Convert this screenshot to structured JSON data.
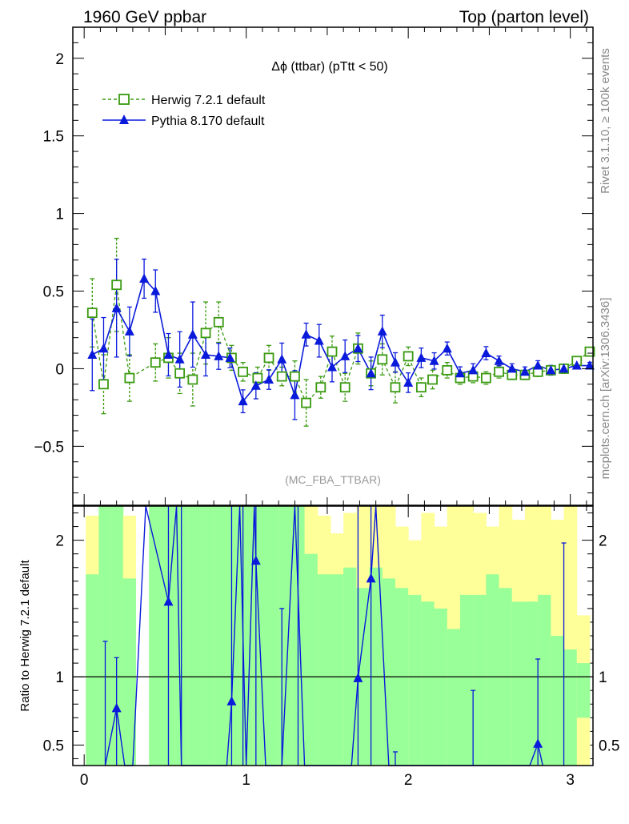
{
  "header": {
    "left_title": "1960 GeV ppbar",
    "right_title": "Top (parton level)"
  },
  "side_labels": {
    "rivet": "Rivet 3.1.10, ≥ 100k events",
    "mcplots": "mcplots.cern.ch [arXiv:1306.3436]"
  },
  "analysis_tag": "(MC_FBA_TTBAR)",
  "chart_data": [
    {
      "type": "line",
      "panel": "main",
      "title": "Δϕ (ttbar) (pTtt < 50)",
      "xlabel": "",
      "ylabel": "",
      "xlim": [
        -0.07,
        3.14
      ],
      "ylim": [
        -0.88,
        2.2
      ],
      "yticks": [
        -0.5,
        0,
        0.5,
        1,
        1.5,
        2
      ],
      "ytick_labels": [
        "−0.5",
        "0",
        "0.5",
        "1",
        "1.5",
        "2"
      ],
      "legend_position": "top-left",
      "series": [
        {
          "name": "Herwig 7.2.1 default",
          "color": "#3a9a10",
          "marker": "open-square",
          "line": "dashed",
          "x": [
            0.05,
            0.12,
            0.2,
            0.28,
            0.44,
            0.52,
            0.59,
            0.67,
            0.75,
            0.83,
            0.91,
            0.98,
            1.07,
            1.14,
            1.22,
            1.3,
            1.37,
            1.46,
            1.53,
            1.61,
            1.69,
            1.77,
            1.84,
            1.92,
            2.0,
            2.08,
            2.15,
            2.24,
            2.32,
            2.4,
            2.48,
            2.56,
            2.64,
            2.72,
            2.8,
            2.88,
            2.96,
            3.04,
            3.12
          ],
          "y": [
            0.36,
            -0.1,
            0.54,
            -0.06,
            0.04,
            0.07,
            -0.03,
            -0.07,
            0.23,
            0.3,
            0.07,
            -0.02,
            -0.06,
            0.07,
            -0.05,
            -0.05,
            -0.22,
            -0.12,
            0.11,
            -0.12,
            0.13,
            -0.03,
            0.06,
            -0.12,
            0.08,
            -0.12,
            -0.07,
            -0.01,
            -0.06,
            -0.05,
            -0.06,
            -0.02,
            -0.04,
            -0.04,
            -0.02,
            -0.01,
            0.0,
            0.05,
            0.11
          ],
          "err": [
            0.22,
            0.19,
            0.3,
            0.15,
            0.12,
            0.13,
            0.13,
            0.17,
            0.2,
            0.13,
            0.08,
            0.06,
            0.07,
            0.08,
            0.06,
            0.1,
            0.15,
            0.07,
            0.1,
            0.09,
            0.1,
            0.08,
            0.1,
            0.1,
            0.06,
            0.06,
            0.06,
            0.05,
            0.04,
            0.04,
            0.04,
            0.04,
            0.03,
            0.03,
            0.03,
            0.03,
            0.03,
            0.02,
            0.02
          ]
        },
        {
          "name": "Pythia 8.170 default",
          "color": "#0a1adb",
          "marker": "filled-triangle",
          "line": "solid",
          "x": [
            0.05,
            0.12,
            0.2,
            0.28,
            0.37,
            0.44,
            0.52,
            0.59,
            0.67,
            0.75,
            0.83,
            0.9,
            0.98,
            1.06,
            1.14,
            1.22,
            1.3,
            1.37,
            1.45,
            1.53,
            1.61,
            1.69,
            1.77,
            1.84,
            1.92,
            2.0,
            2.08,
            2.16,
            2.24,
            2.32,
            2.4,
            2.48,
            2.56,
            2.64,
            2.72,
            2.8,
            2.88,
            2.96,
            3.04,
            3.12
          ],
          "y": [
            0.09,
            0.13,
            0.39,
            0.24,
            0.58,
            0.5,
            0.09,
            0.06,
            0.22,
            0.09,
            0.08,
            0.07,
            -0.21,
            -0.11,
            -0.07,
            0.06,
            -0.17,
            0.22,
            0.18,
            0.01,
            0.08,
            0.13,
            -0.03,
            0.24,
            0.04,
            -0.09,
            0.07,
            0.05,
            0.13,
            -0.03,
            -0.01,
            0.1,
            0.05,
            0.0,
            -0.02,
            0.02,
            -0.01,
            0.0,
            0.02,
            0.02
          ]
        }
      ]
    },
    {
      "type": "line",
      "panel": "ratio",
      "ylabel": "Ratio to Herwig 7.2.1 default",
      "xlim": [
        -0.07,
        3.14
      ],
      "ylim": [
        0.35,
        2.25
      ],
      "yticks": [
        0.5,
        1,
        2
      ],
      "ytick_labels": [
        "0.5",
        "1",
        "2"
      ],
      "xticks": [
        0,
        1,
        2,
        3
      ],
      "xtick_labels": [
        "0",
        "1",
        "2",
        "3"
      ],
      "reference_line": 1,
      "band_colors": {
        "one_sigma": "#99ff99",
        "two_sigma": "#ffff99"
      },
      "reference_band": {
        "edges": [
          0.01,
          0.09,
          0.17,
          0.24,
          0.32,
          0.4,
          0.48,
          0.56,
          0.64,
          0.72,
          0.8,
          0.88,
          0.96,
          1.04,
          1.12,
          1.2,
          1.28,
          1.36,
          1.44,
          1.52,
          1.6,
          1.68,
          1.76,
          1.84,
          1.92,
          2.0,
          2.08,
          2.16,
          2.24,
          2.32,
          2.4,
          2.48,
          2.56,
          2.64,
          2.72,
          2.8,
          2.88,
          2.96,
          3.04,
          3.12
        ],
        "green_lo": [
          0.35,
          0.35,
          0.35,
          0.35,
          0.35,
          0.35,
          0.35,
          0.35,
          0.35,
          0.35,
          0.35,
          0.35,
          0.35,
          0.35,
          0.35,
          0.35,
          0.35,
          0.35,
          0.35,
          0.35,
          0.35,
          0.35,
          0.35,
          0.35,
          0.35,
          0.35,
          0.35,
          0.35,
          0.35,
          0.35,
          0.35,
          0.35,
          0.35,
          0.35,
          0.35,
          0.35,
          0.35,
          0.35,
          0.7
        ],
        "green_hi": [
          1.75,
          2.25,
          2.25,
          1.72,
          2.25,
          2.25,
          2.25,
          2.25,
          2.25,
          2.25,
          2.25,
          2.25,
          2.25,
          2.25,
          2.25,
          2.25,
          2.25,
          1.9,
          1.75,
          1.75,
          1.8,
          1.65,
          1.8,
          1.72,
          1.65,
          1.6,
          1.55,
          1.5,
          1.35,
          1.6,
          1.6,
          1.75,
          1.65,
          1.55,
          1.55,
          1.6,
          1.3,
          1.2,
          1.1
        ],
        "yellow_lo": [
          0.35,
          0.35,
          0.35,
          0.35,
          0.35,
          0.35,
          0.35,
          0.35,
          0.35,
          0.35,
          0.35,
          0.35,
          0.35,
          0.35,
          0.35,
          0.35,
          0.35,
          0.35,
          0.35,
          0.35,
          0.35,
          0.35,
          0.35,
          0.35,
          0.35,
          0.35,
          0.35,
          0.35,
          0.35,
          0.35,
          0.35,
          0.35,
          0.35,
          0.35,
          0.35,
          0.35,
          0.35,
          0.35,
          0.35
        ],
        "yellow_hi": [
          2.18,
          2.25,
          2.25,
          2.18,
          2.25,
          2.25,
          2.25,
          2.25,
          2.25,
          2.25,
          2.25,
          2.25,
          2.25,
          2.25,
          2.25,
          2.25,
          2.25,
          2.25,
          2.18,
          2.05,
          2.2,
          2.25,
          2.25,
          2.25,
          2.1,
          2.0,
          2.2,
          2.1,
          2.25,
          2.25,
          2.2,
          2.1,
          2.25,
          2.15,
          2.25,
          2.25,
          2.15,
          2.25,
          1.45
        ],
        "white_gaps": [
          [
            0.32,
            0.4,
            0.35,
            2.25
          ]
        ]
      },
      "series": [
        {
          "name": "Pythia 8.170 default",
          "color": "#0a1adb",
          "points": [
            {
              "x": 0.2,
              "y": 0.77,
              "lo": 0.35,
              "hi": 1.14
            },
            {
              "x": 0.52,
              "y": 1.55,
              "lo": 0.35,
              "hi": 2.25
            },
            {
              "x": 0.91,
              "y": 0.82,
              "lo": 0.35,
              "hi": 2.25
            },
            {
              "x": 1.06,
              "y": 1.85,
              "lo": 0.35,
              "hi": 2.25
            },
            {
              "x": 1.69,
              "y": 0.99,
              "lo": 0.35,
              "hi": 2.25
            },
            {
              "x": 1.77,
              "y": 1.72,
              "lo": 0.35,
              "hi": 2.25
            },
            {
              "x": 2.8,
              "y": 0.51,
              "lo": 0.35,
              "hi": 1.13
            }
          ],
          "extra_error_bars": [
            {
              "x": 0.13,
              "lo": 0.35,
              "hi": 1.26
            },
            {
              "x": 0.6,
              "lo": 0.35,
              "hi": 2.25
            },
            {
              "x": 0.98,
              "lo": 0.35,
              "hi": 2.25
            },
            {
              "x": 1.22,
              "lo": 0.35,
              "hi": 1.5
            },
            {
              "x": 1.32,
              "lo": 0.35,
              "hi": 2.25
            },
            {
              "x": 1.92,
              "lo": 0.35,
              "hi": 0.45
            },
            {
              "x": 2.4,
              "lo": 0.35,
              "hi": 0.9
            },
            {
              "x": 2.96,
              "lo": 0.35,
              "hi": 1.98
            }
          ],
          "polyline": [
            [
              0.13,
              0.35
            ],
            [
              0.2,
              0.77
            ],
            [
              0.25,
              0.35
            ],
            [
              0.3,
              0.35
            ],
            [
              0.38,
              2.25
            ],
            [
              0.52,
              1.55
            ],
            [
              0.57,
              2.25
            ],
            [
              0.6,
              0.35
            ],
            [
              0.88,
              0.35
            ],
            [
              0.91,
              0.82
            ],
            [
              0.96,
              2.25
            ],
            [
              1.0,
              0.35
            ],
            [
              1.05,
              2.25
            ],
            [
              1.06,
              1.85
            ],
            [
              1.12,
              0.35
            ],
            [
              1.22,
              0.35
            ],
            [
              1.3,
              2.25
            ],
            [
              1.36,
              0.35
            ],
            [
              1.65,
              0.35
            ],
            [
              1.69,
              0.99
            ],
            [
              1.77,
              1.72
            ],
            [
              1.8,
              2.25
            ],
            [
              1.88,
              0.35
            ],
            [
              2.75,
              0.35
            ],
            [
              2.8,
              0.51
            ],
            [
              2.83,
              0.35
            ]
          ]
        }
      ]
    }
  ]
}
